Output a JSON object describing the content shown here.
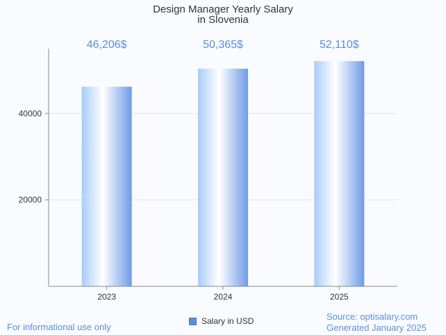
{
  "chart_data": {
    "type": "bar",
    "title_lines": [
      "Design Manager Yearly Salary",
      "in Slovenia"
    ],
    "categories": [
      "2023",
      "2024",
      "2025"
    ],
    "values": [
      46206,
      50365,
      52110
    ],
    "value_labels": [
      "46,206$",
      "50,365$",
      "52,110$"
    ],
    "ylim": [
      0,
      55000
    ],
    "yticks": [
      20000,
      40000
    ],
    "ytick_labels": [
      "20000",
      "40000"
    ],
    "grid": true,
    "legend": {
      "position": "bottom-center",
      "entries": [
        {
          "name": "Salary in USD",
          "color": "#5b8fd9"
        }
      ]
    }
  },
  "footer": {
    "note": "For informational use only",
    "source": "Source: optisalary.com",
    "generated": "Generated January 2025"
  },
  "colors": {
    "accent": "#5b8fd9",
    "bar_light": "#ffffff",
    "bar_dark": "#6f9be8"
  }
}
